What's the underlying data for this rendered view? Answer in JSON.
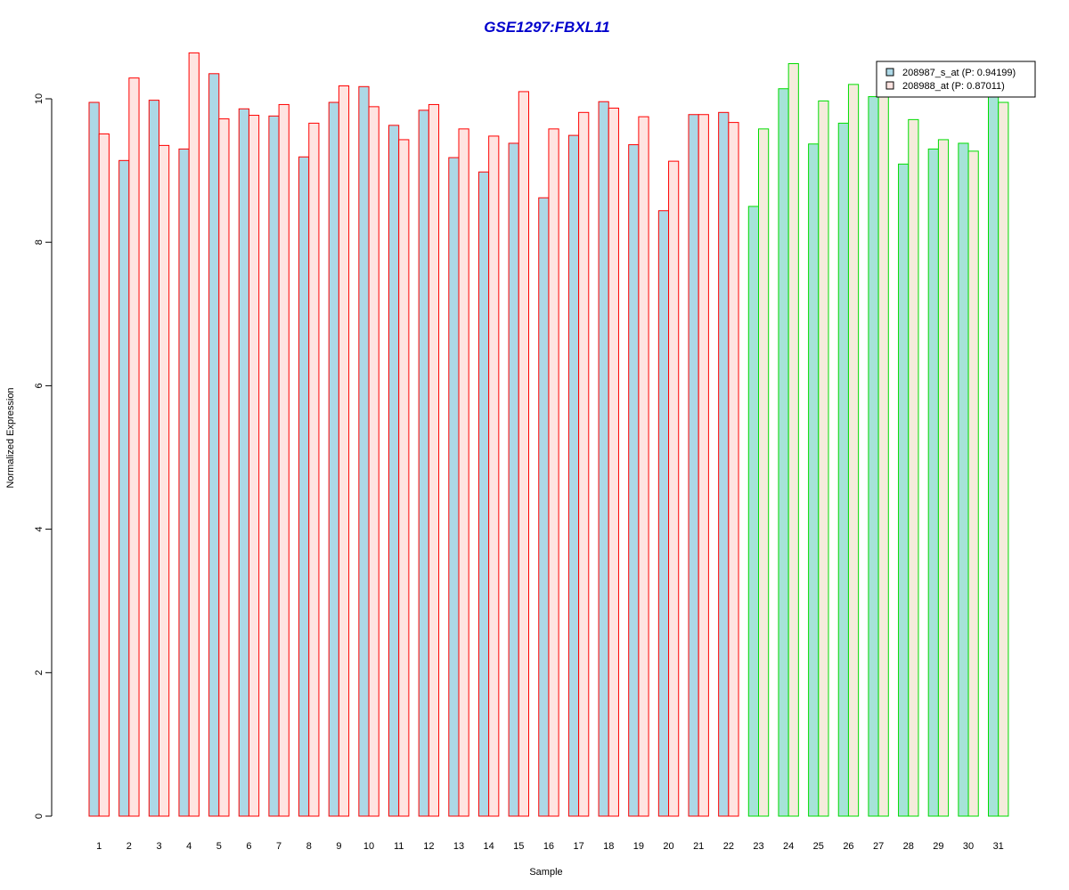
{
  "chart_data": {
    "type": "bar",
    "title": "GSE1297:FBXL11",
    "xlabel": "Sample",
    "ylabel": "Normalized Expression",
    "ylim": [
      0,
      10.7
    ],
    "yticks": [
      0,
      2,
      4,
      6,
      8,
      10
    ],
    "grid": false,
    "legend_position": "top-right",
    "categories": [
      "1",
      "2",
      "3",
      "4",
      "5",
      "6",
      "7",
      "8",
      "9",
      "10",
      "11",
      "12",
      "13",
      "14",
      "15",
      "16",
      "17",
      "18",
      "19",
      "20",
      "21",
      "22",
      "23",
      "24",
      "25",
      "26",
      "27",
      "28",
      "29",
      "30",
      "31"
    ],
    "groups": [
      {
        "samples": [
          1,
          22
        ],
        "border_color": "#ff0000"
      },
      {
        "samples": [
          23,
          31
        ],
        "border_color": "#00dd00"
      }
    ],
    "series": [
      {
        "name": "208987_s_at (P: 0.94199)",
        "fill_color_group1": "#add8e6",
        "fill_color_group2": "#a6e3d8",
        "values": [
          9.95,
          9.14,
          9.98,
          9.3,
          10.35,
          9.86,
          9.76,
          9.19,
          9.95,
          10.17,
          9.63,
          9.84,
          9.18,
          8.98,
          9.38,
          8.62,
          9.49,
          9.96,
          9.36,
          8.44,
          9.78,
          9.81,
          8.5,
          10.14,
          9.37,
          9.66,
          10.03,
          9.09,
          9.3,
          9.38,
          10.08
        ]
      },
      {
        "name": "208988_at (P: 0.87011)",
        "fill_color_group1": "#ffe4e1",
        "fill_color_group2": "#f5ebdc",
        "values": [
          9.51,
          10.29,
          9.35,
          10.64,
          9.72,
          9.77,
          9.92,
          9.66,
          10.18,
          9.89,
          9.43,
          9.92,
          9.58,
          9.48,
          10.1,
          9.58,
          9.81,
          9.87,
          9.75,
          9.13,
          9.78,
          9.67,
          9.58,
          10.49,
          9.97,
          10.2,
          10.2,
          9.71,
          9.43,
          9.27,
          9.95
        ]
      }
    ]
  }
}
